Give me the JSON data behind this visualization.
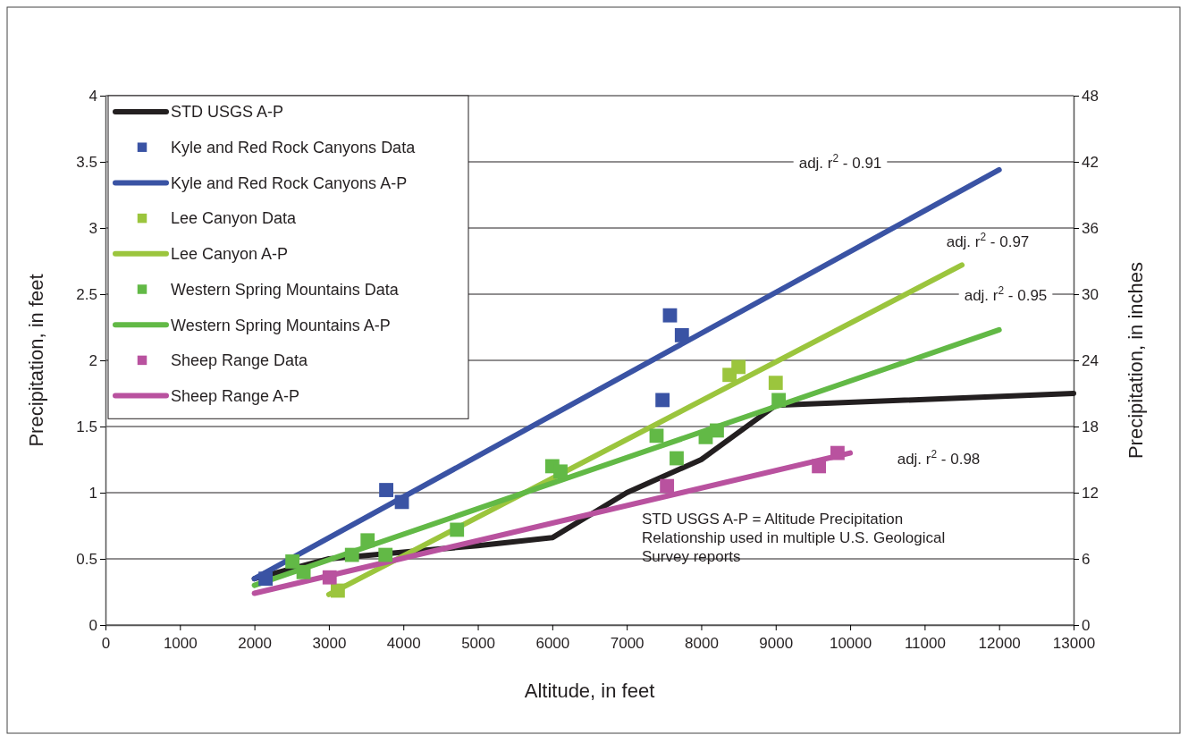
{
  "chart_data": {
    "type": "line",
    "xlabel": "Altitude, in feet",
    "ylabel": "Precipitation, in feet",
    "y2label": "Precipitation, in inches",
    "xlim": [
      0,
      13000
    ],
    "xticks": [
      0,
      1000,
      2000,
      3000,
      4000,
      5000,
      6000,
      7000,
      8000,
      9000,
      10000,
      11000,
      12000,
      13000
    ],
    "ylim": [
      0,
      4
    ],
    "yticks": [
      0,
      0.5,
      1,
      1.5,
      2,
      2.5,
      3,
      3.5,
      4
    ],
    "y2lim": [
      0,
      48
    ],
    "y2ticks": [
      0,
      6,
      12,
      18,
      24,
      30,
      36,
      42,
      48
    ],
    "grid": "y",
    "legend": "top left",
    "annotations": [
      "adj. r$^{2}$ - 0.91",
      "adj. r$^{2}$ - 0.97",
      "adj. r$^{2}$ - 0.95",
      "adj. r$^{2}$ - 0.98",
      "STD USGS A-P = Altitude Precipitation Relationship used in multiple U.S. Geological Survey reports"
    ],
    "series": [
      {
        "name": "STD USGS A-P",
        "color": "#231f20",
        "x": [
          2000,
          3000,
          4000,
          5000,
          6000,
          7000,
          8000,
          9000,
          13000
        ],
        "values": [
          0.35,
          0.5,
          0.55,
          0.6,
          0.66,
          1.0,
          1.25,
          1.66,
          1.75
        ]
      },
      {
        "name": "Kyle and Red Rock Canyons Data",
        "type": "scatter",
        "marker": "square",
        "color": "#3a53a4",
        "x": [
          2150,
          3770,
          3980,
          7480,
          7580,
          7740
        ],
        "values": [
          0.35,
          1.02,
          0.93,
          1.7,
          2.34,
          2.19
        ]
      },
      {
        "name": "Kyle and Red Rock Canyons A-P",
        "color": "#3a53a4",
        "x": [
          2000,
          12000
        ],
        "values": [
          0.35,
          3.44
        ]
      },
      {
        "name": "Lee Canyon Data",
        "type": "scatter",
        "marker": "square",
        "color": "#9bc53d",
        "x": [
          3120,
          8380,
          8500,
          9000
        ],
        "values": [
          0.26,
          1.89,
          1.95,
          1.83
        ]
      },
      {
        "name": "Lee Canyon A-P",
        "color": "#9bc53d",
        "x": [
          3000,
          11500
        ],
        "values": [
          0.23,
          2.72
        ]
      },
      {
        "name": "Western Spring Mountains Data",
        "type": "scatter",
        "marker": "square",
        "color": "#62b946",
        "x": [
          2510,
          2660,
          3310,
          3520,
          3760,
          4720,
          6000,
          6110,
          7400,
          7670,
          8060,
          8210,
          9040
        ],
        "values": [
          0.48,
          0.4,
          0.53,
          0.64,
          0.53,
          0.72,
          1.2,
          1.16,
          1.43,
          1.26,
          1.42,
          1.47,
          1.7
        ]
      },
      {
        "name": "Western Spring Mountains A-P",
        "color": "#62b946",
        "x": [
          2000,
          12000
        ],
        "values": [
          0.3,
          2.23
        ]
      },
      {
        "name": "Sheep Range Data",
        "type": "scatter",
        "marker": "square",
        "color": "#b9529f",
        "x": [
          3010,
          7540,
          9580,
          9830
        ],
        "values": [
          0.36,
          1.05,
          1.2,
          1.3
        ]
      },
      {
        "name": "Sheep Range A-P",
        "color": "#b9529f",
        "x": [
          2000,
          10000
        ],
        "values": [
          0.24,
          1.3
        ]
      }
    ]
  }
}
